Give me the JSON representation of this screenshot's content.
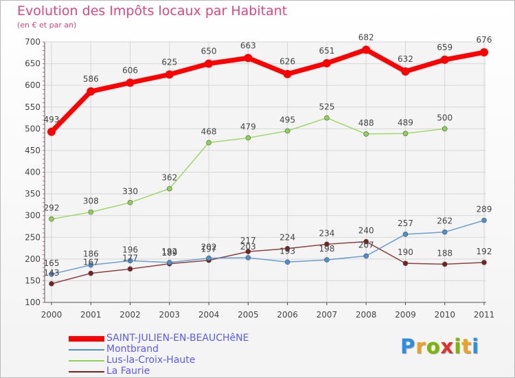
{
  "title": "Evolution des Impôts locaux par Habitant",
  "subtitle": "(en € et par an)",
  "logo": {
    "letters": [
      "P",
      "r",
      "o",
      "x",
      "i",
      "t",
      "i"
    ],
    "colors": [
      "#2a8fe0",
      "#f0a020",
      "#7ab800",
      "#e03030",
      "#7ab800",
      "#f0a020",
      "#2a8fe0"
    ]
  },
  "chart_data": {
    "type": "line",
    "x": [
      "2000",
      "2001",
      "2002",
      "2003",
      "2004",
      "2005",
      "2006",
      "2007",
      "2008",
      "2009",
      "2010",
      "2011"
    ],
    "ylim": [
      100,
      700
    ],
    "yticks": [
      "100",
      "150",
      "200",
      "250",
      "300",
      "350",
      "400",
      "450",
      "500",
      "550",
      "600",
      "650",
      "700"
    ],
    "grid": true,
    "legend_position": "bottom-left",
    "series": [
      {
        "name": "SAINT-JULIEN-EN-BEAUCHêNE",
        "color": "#ff0000",
        "values": [
          493,
          586,
          606,
          625,
          650,
          663,
          626,
          651,
          682,
          632,
          659,
          676
        ]
      },
      {
        "name": "Montbrand",
        "color": "#4d8ecf",
        "values": [
          165,
          186,
          196,
          192,
          202,
          203,
          193,
          198,
          207,
          257,
          262,
          289
        ]
      },
      {
        "name": "Lus-la-Croix-Haute",
        "color": "#8ed350",
        "values": [
          292,
          308,
          330,
          362,
          468,
          479,
          495,
          525,
          488,
          489,
          500,
          null
        ]
      },
      {
        "name": "La Faurie",
        "color": "#7a2020",
        "values": [
          143,
          167,
          177,
          189,
          197,
          217,
          224,
          234,
          240,
          190,
          188,
          192
        ]
      }
    ]
  }
}
